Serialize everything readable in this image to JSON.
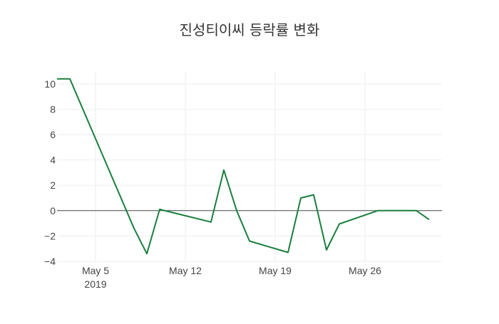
{
  "chart_data": {
    "type": "line",
    "title": "진성티이씨 등락률 변화",
    "xlabel": "",
    "ylabel": "",
    "x_ticks": [
      {
        "date": "2019-05-05",
        "label": "May 5",
        "sublabel": "2019"
      },
      {
        "date": "2019-05-12",
        "label": "May 12",
        "sublabel": ""
      },
      {
        "date": "2019-05-19",
        "label": "May 19",
        "sublabel": ""
      },
      {
        "date": "2019-05-26",
        "label": "May 26",
        "sublabel": ""
      }
    ],
    "y_ticks": [
      -4,
      -2,
      0,
      2,
      4,
      6,
      8,
      10
    ],
    "xlim": [
      "2019-05-02",
      "2019-06-01"
    ],
    "ylim": [
      -4,
      11
    ],
    "grid": true,
    "zero_line": true,
    "series": [
      {
        "color": "#1b7f3e",
        "x": [
          "2019-05-02",
          "2019-05-03",
          "2019-05-08",
          "2019-05-09",
          "2019-05-10",
          "2019-05-14",
          "2019-05-15",
          "2019-05-16",
          "2019-05-17",
          "2019-05-20",
          "2019-05-21",
          "2019-05-22",
          "2019-05-23",
          "2019-05-24",
          "2019-05-27",
          "2019-05-28",
          "2019-05-29",
          "2019-05-30",
          "2019-05-31"
        ],
        "y": [
          10.4,
          10.4,
          -1.4,
          -3.4,
          0.1,
          -0.9,
          3.2,
          0.0,
          -2.4,
          -3.3,
          1.0,
          1.25,
          -3.1,
          -1.05,
          0.0,
          0.0,
          0.0,
          0.0,
          -0.7
        ]
      }
    ]
  }
}
